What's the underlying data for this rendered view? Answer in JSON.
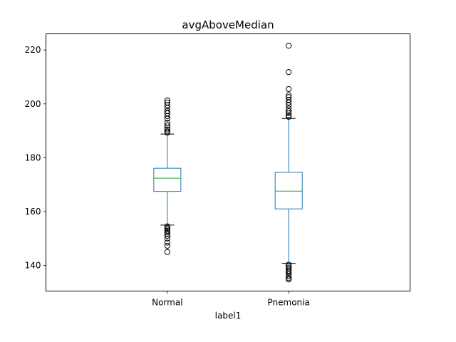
{
  "chart_data": {
    "type": "box",
    "title": "avgAboveMedian",
    "xlabel": "label1",
    "ylabel": "",
    "ylim": [
      130.5,
      226
    ],
    "yticks": [
      140,
      160,
      180,
      200,
      220
    ],
    "grid": false,
    "categories": [
      "Normal",
      "Pnemonia"
    ],
    "boxes": [
      {
        "category": "Normal",
        "q1": 167.5,
        "median": 172.4,
        "q3": 176.1,
        "whisker_low": 155.0,
        "whisker_high": 188.8,
        "outliers": [
          189.3,
          189.8,
          190.5,
          191.2,
          192.0,
          193.0,
          194.5,
          195.5,
          196.5,
          197.3,
          198.5,
          199.5,
          200.5,
          201.3,
          154.5,
          153.9,
          153.4,
          152.9,
          152.3,
          151.7,
          151.0,
          150.0,
          148.5,
          147.3,
          145.0
        ]
      },
      {
        "category": "Pnemonia",
        "q1": 161.0,
        "median": 167.6,
        "q3": 174.6,
        "whisker_low": 140.8,
        "whisker_high": 194.6,
        "outliers": [
          195.2,
          195.8,
          196.5,
          197.3,
          198.3,
          199.5,
          200.5,
          201.5,
          202.5,
          203.2,
          205.5,
          211.8,
          221.6,
          140.3,
          139.8,
          139.2,
          138.6,
          138.0,
          137.4,
          136.7,
          136.0,
          135.3,
          134.8
        ]
      }
    ],
    "colors": {
      "box": "#1f77b4",
      "median": "#2ca02c",
      "outlier": "#000000",
      "caps": "#000000"
    }
  }
}
